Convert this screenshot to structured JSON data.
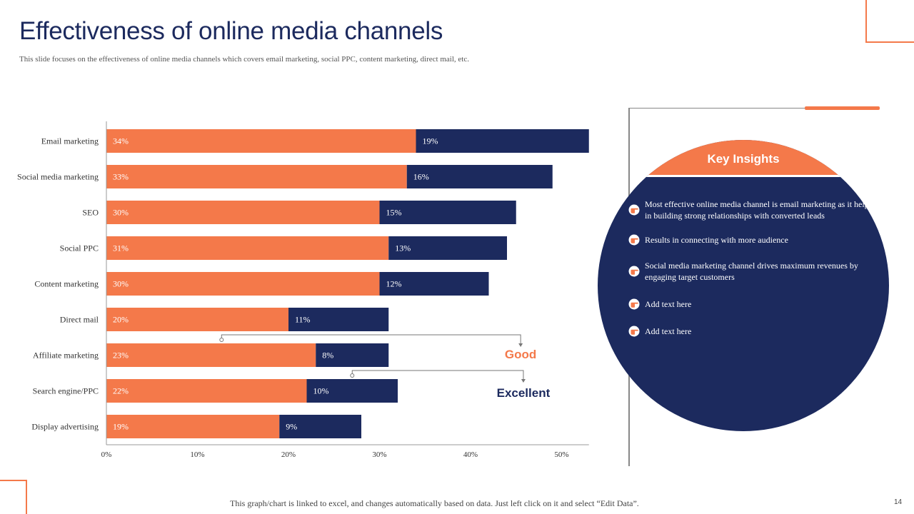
{
  "slide": {
    "title": "Effectiveness of online media channels",
    "subtitle": "This slide focuses on the effectiveness of online media channels which covers email marketing, social PPC, content marketing, direct mail, etc.",
    "footer_note": "This graph/chart is linked to excel, and changes automatically based on data. Just left click on it and select “Edit Data”.",
    "page_number": "14"
  },
  "colors": {
    "orange": "#f4794a",
    "navy": "#1c2a5e",
    "text": "#333333"
  },
  "chart_data": {
    "type": "bar",
    "orientation": "horizontal",
    "stacked": true,
    "categories": [
      "Email marketing",
      "Social media marketing",
      "SEO",
      "Social PPC",
      "Content marketing",
      "Direct mail",
      "Affiliate marketing",
      "Search engine/PPC",
      "Display advertising"
    ],
    "series": [
      {
        "name": "Good",
        "color": "#f4794a",
        "values": [
          34,
          33,
          30,
          31,
          30,
          20,
          23,
          22,
          19
        ],
        "labels": [
          "34%",
          "33%",
          "30%",
          "31%",
          "30%",
          "20%",
          "23%",
          "22%",
          "19%"
        ]
      },
      {
        "name": "Excellent",
        "color": "#1c2a5e",
        "values": [
          19,
          16,
          15,
          13,
          12,
          11,
          8,
          10,
          9
        ],
        "labels": [
          "19%",
          "16%",
          "15%",
          "13%",
          "12%",
          "11%",
          "8%",
          "10%",
          "9%"
        ]
      }
    ],
    "xlim": [
      0,
      53
    ],
    "xticks": [
      0,
      10,
      20,
      30,
      40,
      50
    ],
    "xtick_labels": [
      "0%",
      "10%",
      "20%",
      "30%",
      "40%",
      "50%"
    ],
    "annotations": [
      {
        "text": "Good",
        "color": "#f4794a",
        "category_index": 6,
        "series": "Good"
      },
      {
        "text": "Excellent",
        "color": "#1c2a5e",
        "category_index": 7,
        "series": "Excellent"
      }
    ]
  },
  "insights": {
    "heading": "Key Insights",
    "icon": "pointing-hand-icon",
    "items": [
      "Most effective online media channel is email marketing as it helps in building strong relationships with converted leads",
      "Results in connecting with more audience",
      "Social media marketing channel drives maximum revenues by engaging target customers",
      "Add text here",
      "Add text here"
    ]
  }
}
